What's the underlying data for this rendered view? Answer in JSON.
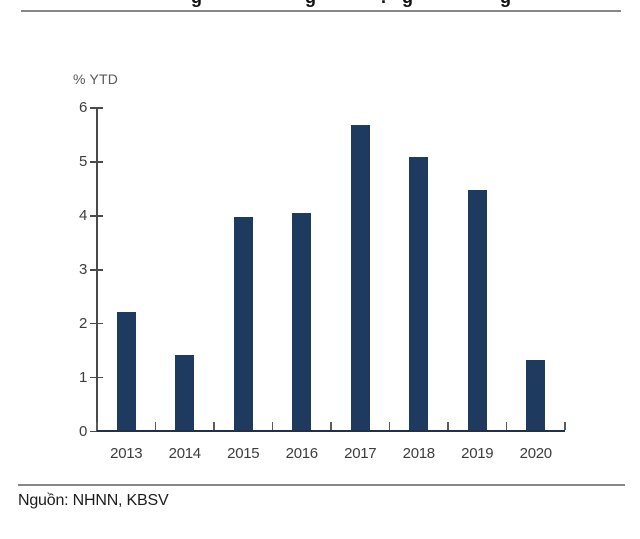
{
  "page": {
    "unit_label": "% YTD",
    "source_label": "Nguồn: NHNN, KBSV",
    "clipped_title_fragments": [
      {
        "glyph": "g",
        "x": 191
      },
      {
        "glyph": "g",
        "x": 305
      },
      {
        "glyph": ".",
        "x": 381
      },
      {
        "glyph": "g",
        "x": 402
      },
      {
        "glyph": "g",
        "x": 500
      }
    ]
  },
  "colors": {
    "bar": "#1e3a5f",
    "x_axis": "#22314a",
    "y_axis": "#4a4a4a",
    "tick": "#5a5a5a",
    "tick_label": "#3d3d3d",
    "unit_label": "#595959",
    "separator": "#878787"
  },
  "chart_data": {
    "type": "bar",
    "title": "",
    "unit": "% YTD",
    "categories": [
      "2013",
      "2014",
      "2015",
      "2016",
      "2017",
      "2018",
      "2019",
      "2020"
    ],
    "values": [
      2.22,
      1.42,
      3.97,
      4.06,
      5.68,
      5.1,
      4.47,
      1.32
    ],
    "xlabel": "",
    "ylabel": "% YTD",
    "ylim": [
      0,
      6
    ],
    "ytick_step": 1,
    "grid": false,
    "legend": false,
    "source": "Nguồn: NHNN, KBSV"
  }
}
